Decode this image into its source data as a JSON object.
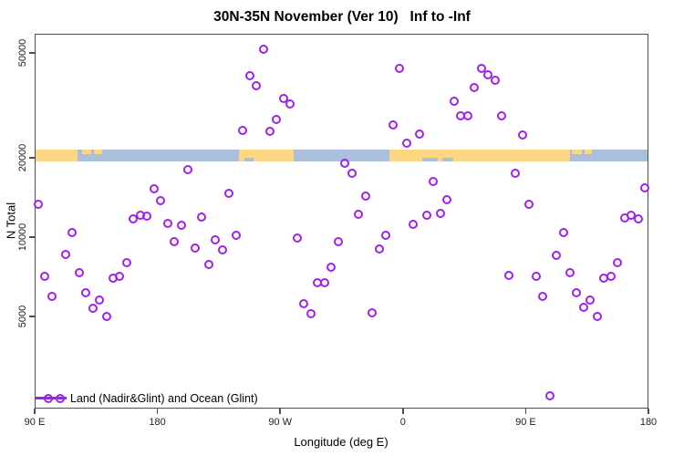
{
  "legend": {
    "label": "Land (Nadir&Glint) and Ocean (Glint)",
    "symbol": "line-with-two-open-circles",
    "color": "#A020F0"
  },
  "chart_data": {
    "type": "scatter",
    "title": "30N-35N November (Ver 10)   Inf to -Inf",
    "xlabel": "Longitude (deg E)",
    "ylabel": "N Total",
    "marker": "open-circle",
    "grid": false,
    "x_axis": {
      "range_deg_east": [
        90,
        540
      ],
      "ticks": [
        90,
        180,
        270,
        360,
        450,
        540
      ],
      "tick_labels": [
        "90 E",
        "180",
        "90 W",
        "0",
        "90 E",
        "180"
      ]
    },
    "y_axis": {
      "scale": "log",
      "range": [
        2200,
        58800
      ],
      "ticks": [
        5000,
        10000,
        20000,
        50000
      ],
      "tick_labels": [
        "5000",
        "10000",
        "20000",
        "50000"
      ]
    },
    "series": [
      {
        "name": "Land (Nadir&Glint) and Ocean (Glint)",
        "color": "#A020F0",
        "marker": "open-circle",
        "points": [
          [
            92.5,
            13300
          ],
          [
            97.5,
            7100
          ],
          [
            102.5,
            5940
          ],
          [
            112.5,
            8580
          ],
          [
            117.5,
            10400
          ],
          [
            122.5,
            7350
          ],
          [
            127.5,
            6150
          ],
          [
            132.5,
            5370
          ],
          [
            137.5,
            5760
          ],
          [
            142.5,
            5000
          ],
          [
            147.5,
            6970
          ],
          [
            152.5,
            7120
          ],
          [
            157.5,
            8020
          ],
          [
            162.5,
            11700
          ],
          [
            167.5,
            12100
          ],
          [
            172.5,
            12000
          ],
          [
            177.5,
            15300
          ],
          [
            182.5,
            13800
          ],
          [
            187.5,
            11300
          ],
          [
            192.5,
            9590
          ],
          [
            197.5,
            11100
          ],
          [
            202.5,
            18100
          ],
          [
            207.5,
            9090
          ],
          [
            212.5,
            11900
          ],
          [
            217.5,
            7850
          ],
          [
            222.5,
            9760
          ],
          [
            227.5,
            8930
          ],
          [
            232.5,
            14700
          ],
          [
            237.5,
            10200
          ],
          [
            242.5,
            25300
          ],
          [
            247.5,
            40900
          ],
          [
            252.5,
            37500
          ],
          [
            257.5,
            51600
          ],
          [
            262.5,
            25200
          ],
          [
            267.5,
            27900
          ],
          [
            272.5,
            33600
          ],
          [
            277.5,
            32000
          ],
          [
            282.5,
            9920
          ],
          [
            287.5,
            5600
          ],
          [
            292.5,
            5130
          ],
          [
            297.5,
            6700
          ],
          [
            302.5,
            6700
          ],
          [
            307.5,
            7690
          ],
          [
            312.5,
            9590
          ],
          [
            317.5,
            19000
          ],
          [
            322.5,
            17500
          ],
          [
            327.5,
            12200
          ],
          [
            332.5,
            14300
          ],
          [
            337.5,
            5180
          ],
          [
            342.5,
            9040
          ],
          [
            347.5,
            10200
          ],
          [
            352.5,
            26600
          ],
          [
            357.5,
            43700
          ],
          [
            362.5,
            22800
          ],
          [
            367.5,
            11200
          ],
          [
            372.5,
            24600
          ],
          [
            377.5,
            12100
          ],
          [
            382.5,
            16300
          ],
          [
            387.5,
            12300
          ],
          [
            392.5,
            13900
          ],
          [
            397.5,
            32900
          ],
          [
            402.5,
            28900
          ],
          [
            407.5,
            28900
          ],
          [
            412.5,
            37000
          ],
          [
            417.5,
            43800
          ],
          [
            422.5,
            41400
          ],
          [
            427.5,
            39400
          ],
          [
            432.5,
            28900
          ],
          [
            437.5,
            7160
          ],
          [
            442.5,
            17500
          ],
          [
            447.5,
            24400
          ],
          [
            452.5,
            13300
          ],
          [
            457.5,
            7100
          ],
          [
            462.5,
            5940
          ],
          [
            467.5,
            2490
          ],
          [
            472.5,
            8510
          ],
          [
            477.5,
            10400
          ],
          [
            482.5,
            7350
          ],
          [
            487.5,
            6150
          ],
          [
            492.5,
            5410
          ],
          [
            497.5,
            5790
          ],
          [
            502.5,
            5000
          ],
          [
            507.5,
            7000
          ],
          [
            512.5,
            7120
          ],
          [
            517.5,
            8020
          ],
          [
            522.5,
            11800
          ],
          [
            527.5,
            12100
          ],
          [
            532.5,
            11700
          ],
          [
            537.5,
            15400
          ]
        ]
      }
    ],
    "map_strip": {
      "note": "land/ocean geography band drawn across the plot near N=20000",
      "ocean_color": "#A9BFDC",
      "land_color": "#FBD683",
      "land_segments_deg": [
        [
          90,
          121.5
        ],
        [
          239.8,
          280
        ],
        [
          350,
          482.5
        ]
      ],
      "land_patches_top_deg": [
        [
          124.5,
          131.5
        ],
        [
          133.5,
          139.5
        ],
        [
          484,
          491
        ],
        [
          493,
          498.5
        ]
      ],
      "ocean_notches_bottom_deg": [
        [
          243.5,
          250.5
        ],
        [
          374.5,
          385.5
        ],
        [
          389,
          397
        ]
      ]
    }
  }
}
